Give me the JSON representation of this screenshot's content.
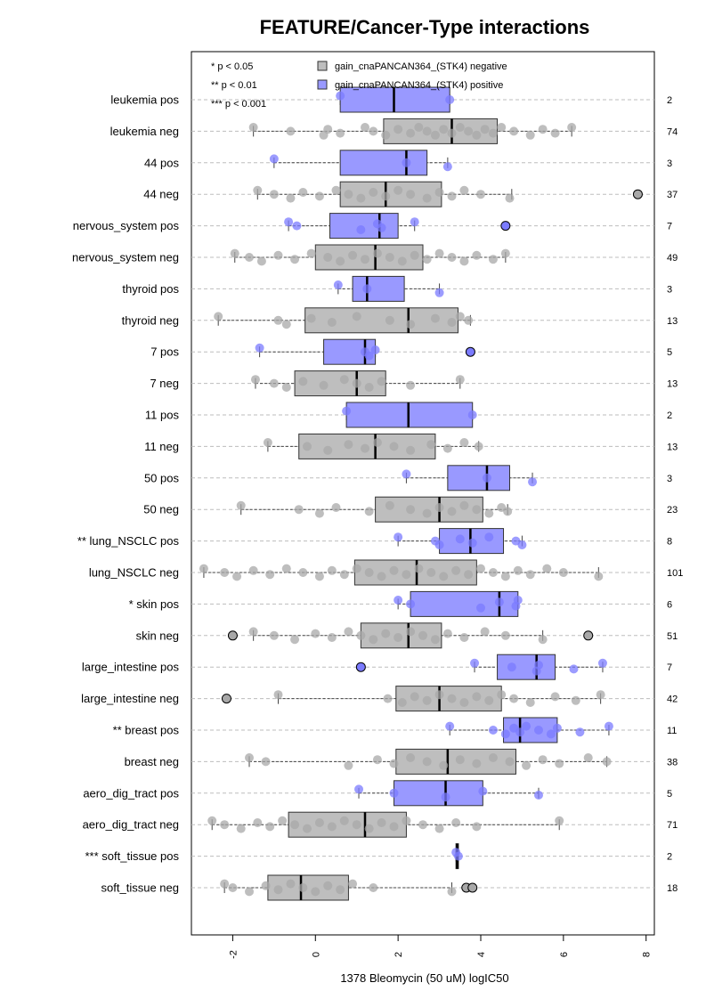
{
  "chart_data": {
    "type": "boxplot",
    "title": "FEATURE/Cancer-Type interactions",
    "xlabel": "1378 Bleomycin (50 uM) logIC50",
    "xlim": [
      -3,
      8.2
    ],
    "xticks": [
      -2,
      0,
      2,
      4,
      6,
      8
    ],
    "grid": "horizontal dashed",
    "legend_position": "top",
    "significance_legend": [
      "* p < 0.05",
      "** p < 0.01",
      "*** p < 0.001"
    ],
    "legend": [
      {
        "label": "gain_cnaPANCAN364_(STK4) negative",
        "color": "#bebebe"
      },
      {
        "label": "gain_cnaPANCAN364_(STK4) positive",
        "color": "#9999ff"
      }
    ],
    "colors": {
      "negative_box": "#bebebe",
      "positive_box": "#9999ff",
      "negative_point": "#a8a8a8",
      "positive_point": "#7b7bff"
    },
    "rows": [
      {
        "label": "leukemia pos",
        "n": "2",
        "kind": "pos",
        "q1": 0.6,
        "median": 1.9,
        "q3": 3.25,
        "wlo": 0.6,
        "whi": 3.25,
        "points": [
          0.6,
          3.25
        ],
        "outliers": []
      },
      {
        "label": "leukemia neg",
        "n": "74",
        "kind": "neg",
        "q1": 1.65,
        "median": 3.3,
        "q3": 4.4,
        "wlo": -1.5,
        "whi": 6.2,
        "points": [
          -1.5,
          -0.6,
          0.2,
          0.3,
          0.6,
          1.2,
          1.4,
          1.7,
          2.0,
          2.3,
          2.5,
          2.7,
          2.9,
          3.1,
          3.3,
          3.5,
          3.7,
          3.9,
          4.1,
          4.3,
          4.5,
          4.8,
          5.2,
          5.5,
          5.8,
          6.2
        ],
        "outliers": []
      },
      {
        "label": "44 pos",
        "n": "3",
        "kind": "pos",
        "q1": 0.6,
        "median": 2.2,
        "q3": 2.7,
        "wlo": -1.0,
        "whi": 3.2,
        "points": [
          -1.0,
          2.2,
          3.2
        ],
        "outliers": []
      },
      {
        "label": "44 neg",
        "n": "37",
        "kind": "neg",
        "q1": 0.6,
        "median": 1.7,
        "q3": 3.05,
        "wlo": -1.4,
        "whi": 4.75,
        "points": [
          -1.4,
          -1.0,
          -0.6,
          -0.3,
          0.1,
          0.5,
          0.8,
          1.1,
          1.4,
          1.7,
          2.0,
          2.3,
          2.7,
          3.0,
          3.3,
          3.6,
          4.0,
          4.7
        ],
        "outliers": [
          7.8
        ]
      },
      {
        "label": "nervous_system pos",
        "n": "7",
        "kind": "pos",
        "q1": 0.35,
        "median": 1.55,
        "q3": 2.0,
        "wlo": -0.65,
        "whi": 2.4,
        "points": [
          -0.65,
          -0.45,
          1.1,
          1.5,
          1.6,
          2.4
        ],
        "outliers": [
          4.6
        ]
      },
      {
        "label": "nervous_system neg",
        "n": "49",
        "kind": "neg",
        "q1": 0.0,
        "median": 1.45,
        "q3": 2.6,
        "wlo": -1.95,
        "whi": 4.6,
        "points": [
          -1.95,
          -1.6,
          -1.3,
          -0.9,
          -0.5,
          -0.1,
          0.3,
          0.6,
          0.9,
          1.2,
          1.5,
          1.8,
          2.1,
          2.4,
          2.7,
          3.0,
          3.3,
          3.6,
          3.9,
          4.3,
          4.6
        ],
        "outliers": []
      },
      {
        "label": "thyroid pos",
        "n": "3",
        "kind": "pos",
        "q1": 0.9,
        "median": 1.25,
        "q3": 2.15,
        "wlo": 0.55,
        "whi": 3.0,
        "points": [
          0.55,
          1.25,
          3.0
        ],
        "outliers": []
      },
      {
        "label": "thyroid neg",
        "n": "13",
        "kind": "neg",
        "q1": -0.25,
        "median": 2.25,
        "q3": 3.45,
        "wlo": -2.35,
        "whi": 3.75,
        "points": [
          -2.35,
          -0.9,
          -0.7,
          -0.1,
          0.4,
          1.0,
          1.8,
          2.3,
          2.9,
          3.3,
          3.5,
          3.7
        ],
        "outliers": []
      },
      {
        "label": "7 pos",
        "n": "5",
        "kind": "pos",
        "q1": 0.2,
        "median": 1.2,
        "q3": 1.45,
        "wlo": -1.35,
        "whi": 1.45,
        "points": [
          -1.35,
          1.2,
          1.3,
          1.45
        ],
        "outliers": [
          3.75
        ]
      },
      {
        "label": "7 neg",
        "n": "13",
        "kind": "neg",
        "q1": -0.5,
        "median": 1.0,
        "q3": 1.7,
        "wlo": -1.45,
        "whi": 3.5,
        "points": [
          -1.45,
          -1.0,
          -0.7,
          -0.3,
          0.2,
          0.7,
          1.0,
          1.3,
          1.6,
          2.3,
          3.5
        ],
        "outliers": []
      },
      {
        "label": "11 pos",
        "n": "2",
        "kind": "pos",
        "q1": 0.75,
        "median": 2.25,
        "q3": 3.8,
        "wlo": 0.75,
        "whi": 3.8,
        "points": [
          0.75,
          3.8
        ],
        "outliers": []
      },
      {
        "label": "11 neg",
        "n": "13",
        "kind": "neg",
        "q1": -0.4,
        "median": 1.45,
        "q3": 2.9,
        "wlo": -1.15,
        "whi": 3.95,
        "points": [
          -1.15,
          -0.2,
          0.3,
          0.8,
          1.2,
          1.5,
          1.9,
          2.3,
          2.8,
          3.2,
          3.6,
          3.95
        ],
        "outliers": []
      },
      {
        "label": "50 pos",
        "n": "3",
        "kind": "pos",
        "q1": 3.2,
        "median": 4.15,
        "q3": 4.7,
        "wlo": 2.2,
        "whi": 5.25,
        "points": [
          2.2,
          4.15,
          5.25
        ],
        "outliers": []
      },
      {
        "label": "50 neg",
        "n": "23",
        "kind": "neg",
        "q1": 1.45,
        "median": 3.0,
        "q3": 4.05,
        "wlo": -1.8,
        "whi": 4.65,
        "points": [
          -1.8,
          -0.4,
          0.1,
          0.5,
          1.3,
          1.8,
          2.3,
          2.7,
          3.0,
          3.3,
          3.6,
          3.9,
          4.2,
          4.5,
          4.65
        ],
        "outliers": []
      },
      {
        "label": "** lung_NSCLC pos",
        "n": "8",
        "kind": "pos",
        "q1": 3.0,
        "median": 3.75,
        "q3": 4.55,
        "wlo": 2.0,
        "whi": 5.0,
        "points": [
          2.0,
          2.9,
          3.0,
          3.5,
          3.8,
          4.2,
          4.85,
          5.0
        ],
        "outliers": []
      },
      {
        "label": "lung_NSCLC neg",
        "n": "101",
        "kind": "neg",
        "q1": 0.95,
        "median": 2.45,
        "q3": 3.9,
        "wlo": -2.7,
        "whi": 6.85,
        "points": [
          -2.7,
          -2.2,
          -1.9,
          -1.5,
          -1.1,
          -0.7,
          -0.3,
          0.1,
          0.4,
          0.7,
          1.0,
          1.3,
          1.6,
          1.9,
          2.2,
          2.5,
          2.8,
          3.1,
          3.4,
          3.7,
          4.0,
          4.3,
          4.6,
          4.9,
          5.2,
          5.6,
          6.0,
          6.85
        ],
        "outliers": []
      },
      {
        "label": "* skin pos",
        "n": "6",
        "kind": "pos",
        "q1": 2.3,
        "median": 4.45,
        "q3": 4.9,
        "wlo": 2.0,
        "whi": 4.9,
        "points": [
          2.0,
          2.3,
          4.0,
          4.45,
          4.85,
          4.9
        ],
        "outliers": []
      },
      {
        "label": "skin neg",
        "n": "51",
        "kind": "neg",
        "q1": 1.1,
        "median": 2.25,
        "q3": 3.05,
        "wlo": -1.5,
        "whi": 5.5,
        "points": [
          -1.5,
          -1.0,
          -0.5,
          0.0,
          0.4,
          0.8,
          1.1,
          1.4,
          1.7,
          2.0,
          2.3,
          2.6,
          2.9,
          3.2,
          3.6,
          4.1,
          4.6,
          5.5
        ],
        "outliers": [
          -2.0,
          6.6
        ]
      },
      {
        "label": "large_intestine pos",
        "n": "7",
        "kind": "pos",
        "q1": 4.4,
        "median": 5.35,
        "q3": 5.8,
        "wlo": 3.85,
        "whi": 6.95,
        "points": [
          3.85,
          4.75,
          5.35,
          5.4,
          6.25,
          6.95
        ],
        "outliers": [
          1.1
        ]
      },
      {
        "label": "large_intestine neg",
        "n": "42",
        "kind": "neg",
        "q1": 1.95,
        "median": 3.0,
        "q3": 4.5,
        "wlo": -0.9,
        "whi": 6.9,
        "points": [
          -0.9,
          1.75,
          2.1,
          2.4,
          2.7,
          3.0,
          3.3,
          3.6,
          3.9,
          4.2,
          4.5,
          4.8,
          5.2,
          5.8,
          6.3,
          6.9
        ],
        "outliers": [
          -2.15
        ]
      },
      {
        "label": "** breast pos",
        "n": "11",
        "kind": "pos",
        "q1": 4.55,
        "median": 4.95,
        "q3": 5.85,
        "wlo": 3.25,
        "whi": 7.1,
        "points": [
          3.25,
          4.3,
          4.6,
          4.8,
          4.95,
          5.1,
          5.4,
          5.7,
          5.85,
          6.4,
          7.1
        ],
        "outliers": []
      },
      {
        "label": "breast neg",
        "n": "38",
        "kind": "neg",
        "q1": 1.95,
        "median": 3.2,
        "q3": 4.85,
        "wlo": -1.6,
        "whi": 7.05,
        "points": [
          -1.6,
          -1.2,
          0.8,
          1.5,
          1.9,
          2.3,
          2.7,
          3.1,
          3.5,
          3.9,
          4.3,
          4.7,
          5.1,
          5.5,
          5.9,
          6.6,
          7.05
        ],
        "outliers": []
      },
      {
        "label": "aero_dig_tract pos",
        "n": "5",
        "kind": "pos",
        "q1": 1.9,
        "median": 3.15,
        "q3": 4.05,
        "wlo": 1.05,
        "whi": 5.4,
        "points": [
          1.05,
          1.9,
          3.15,
          4.05,
          5.4
        ],
        "outliers": []
      },
      {
        "label": "aero_dig_tract neg",
        "n": "71",
        "kind": "neg",
        "q1": -0.65,
        "median": 1.2,
        "q3": 2.2,
        "wlo": -2.5,
        "whi": 5.9,
        "points": [
          -2.5,
          -2.2,
          -1.8,
          -1.4,
          -1.1,
          -0.8,
          -0.5,
          -0.2,
          0.1,
          0.4,
          0.7,
          1.0,
          1.3,
          1.6,
          1.9,
          2.2,
          2.6,
          3.0,
          3.4,
          3.9,
          5.9
        ],
        "outliers": []
      },
      {
        "label": "*** soft_tissue pos",
        "n": "2",
        "kind": "pos",
        "q1": 3.4,
        "median": 3.43,
        "q3": 3.46,
        "wlo": 3.4,
        "whi": 3.46,
        "points": [
          3.4,
          3.46
        ],
        "outliers": []
      },
      {
        "label": "soft_tissue neg",
        "n": "18",
        "kind": "neg",
        "q1": -1.15,
        "median": -0.35,
        "q3": 0.8,
        "wlo": -2.2,
        "whi": 3.3,
        "points": [
          -2.2,
          -2.0,
          -1.6,
          -1.2,
          -0.9,
          -0.6,
          -0.3,
          0.0,
          0.3,
          0.6,
          0.9,
          1.4,
          3.3
        ],
        "outliers": [
          3.65,
          3.8
        ]
      }
    ]
  }
}
